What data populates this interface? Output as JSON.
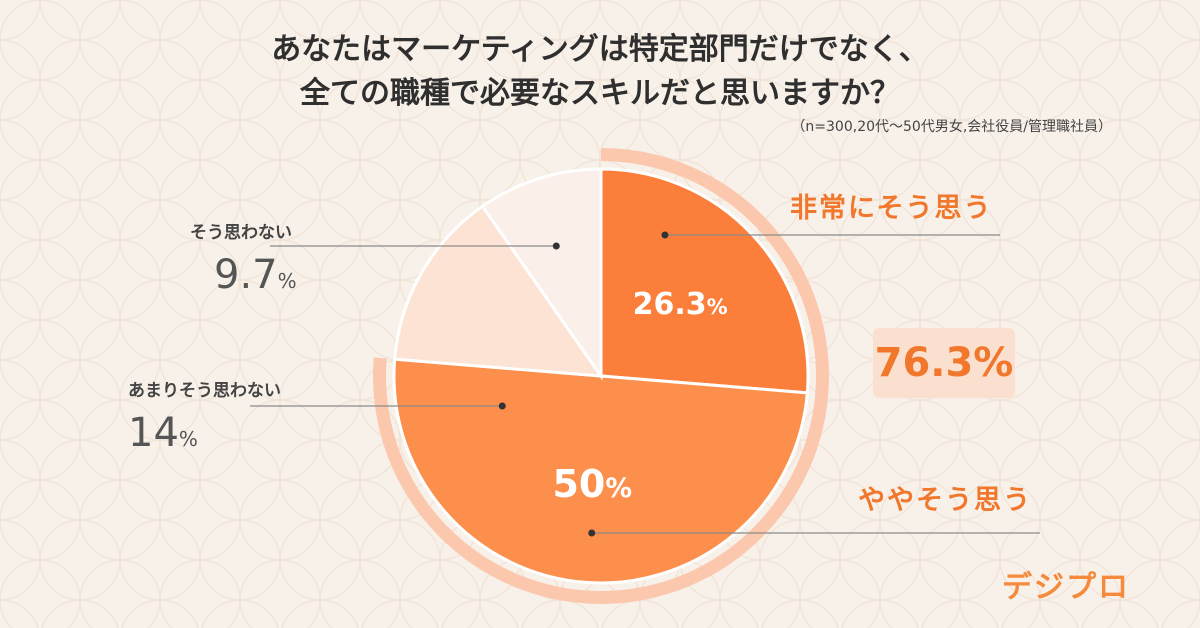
{
  "title_line1": "あなたはマーケティングは特定部門だけでなく、",
  "title_line2": "全ての職種で必要なスキルだと思いますか？",
  "note": "（n=300,20代〜50代男女,会社役員/管理職社員）",
  "logo": "デジプロ",
  "total": {
    "value": 76.3,
    "label": "76.3%"
  },
  "colors": {
    "strong": "#fb7f3b",
    "somewhat": "#fd8f4d",
    "not_much": "#fce3d3",
    "not": "#fbefe9",
    "ring": "#fcc8ad",
    "accent_text": "#f0772b"
  },
  "chart_data": {
    "type": "pie",
    "title": "あなたはマーケティングは特定部門だけでなく、全ての職種で必要なスキルだと思いますか？",
    "unit": "%",
    "slices": [
      {
        "label": "非常にそう思う",
        "value": 26.3,
        "display": "26.3"
      },
      {
        "label": "ややそう思う",
        "value": 50,
        "display": "50"
      },
      {
        "label": "あまりそう思わない",
        "value": 14,
        "display": "14"
      },
      {
        "label": "そう思わない",
        "value": 9.7,
        "display": "9.7"
      }
    ]
  }
}
